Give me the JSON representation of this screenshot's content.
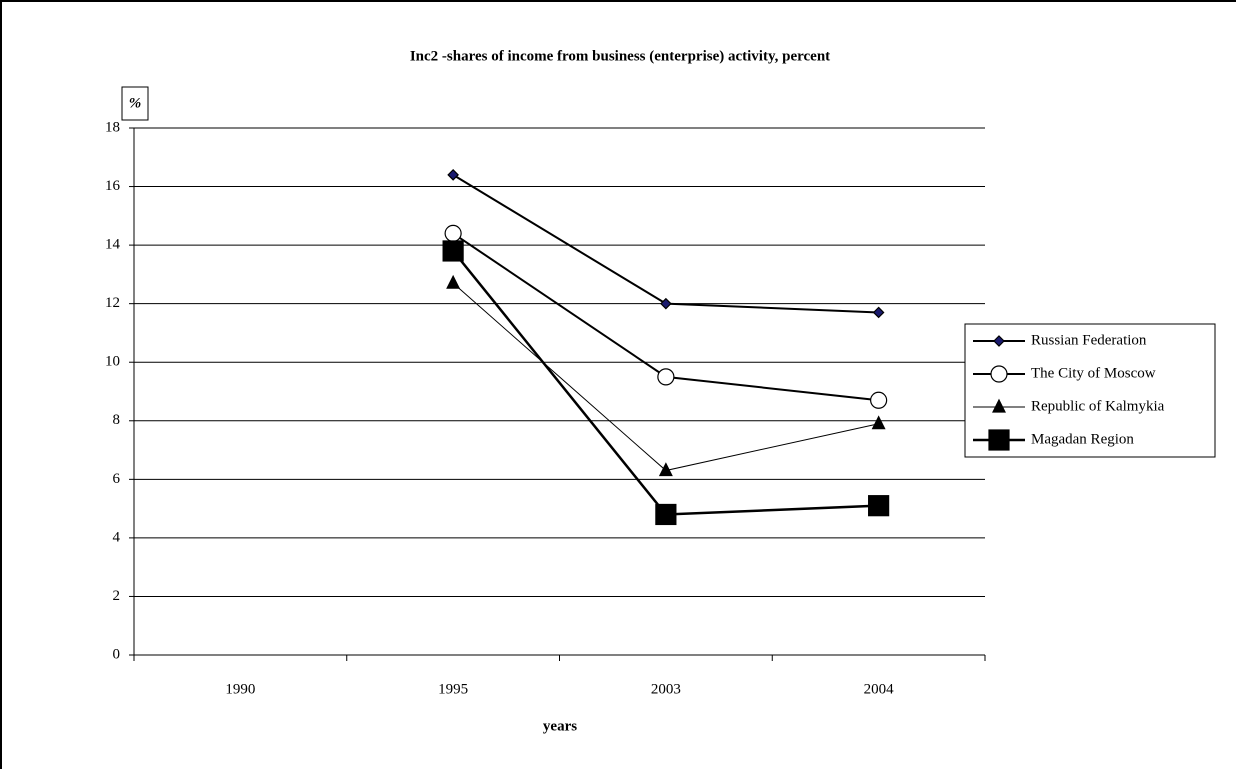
{
  "chart_data": {
    "type": "line",
    "title": "Inc2 -shares of income from business (enterprise) activity, percent",
    "y_label": "%",
    "x_label": "years",
    "categories": [
      "1990",
      "1995",
      "2003",
      "2004"
    ],
    "series": [
      {
        "name": "Russian Federation",
        "color": "#000000",
        "marker": "diamond",
        "marker_color": "#1a1a6e",
        "line_width": 2,
        "values": [
          null,
          16.4,
          12.0,
          11.7
        ]
      },
      {
        "name": "The City of Moscow",
        "color": "#000000",
        "marker": "circle",
        "marker_color": "#ffffff",
        "line_width": 2,
        "values": [
          null,
          14.4,
          9.5,
          8.7
        ]
      },
      {
        "name": "Republic of Kalmykia",
        "color": "#000000",
        "marker": "triangle",
        "marker_color": "#000000",
        "line_width": 1,
        "values": [
          null,
          12.7,
          6.3,
          7.9
        ]
      },
      {
        "name": "Magadan Region",
        "color": "#000000",
        "marker": "square",
        "marker_color": "#000000",
        "line_width": 2.5,
        "values": [
          null,
          13.8,
          4.8,
          5.1
        ]
      }
    ],
    "ylim": [
      0,
      18
    ],
    "yticks": [
      0,
      2,
      4,
      6,
      8,
      10,
      12,
      14,
      16,
      18
    ],
    "grid": true,
    "legend": "right"
  }
}
